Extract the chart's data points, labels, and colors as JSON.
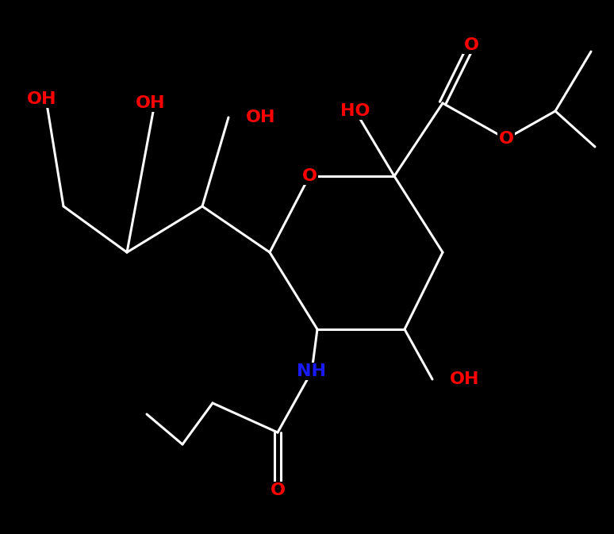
{
  "bg_color": "#000000",
  "bond_color": "#ffffff",
  "bond_width": 2.2,
  "label_color_O": "#ff0000",
  "label_color_N": "#1a1aff",
  "figsize": [
    7.74,
    6.73
  ],
  "dpi": 100,
  "xlim": [
    0,
    774
  ],
  "ylim": [
    0,
    673
  ]
}
